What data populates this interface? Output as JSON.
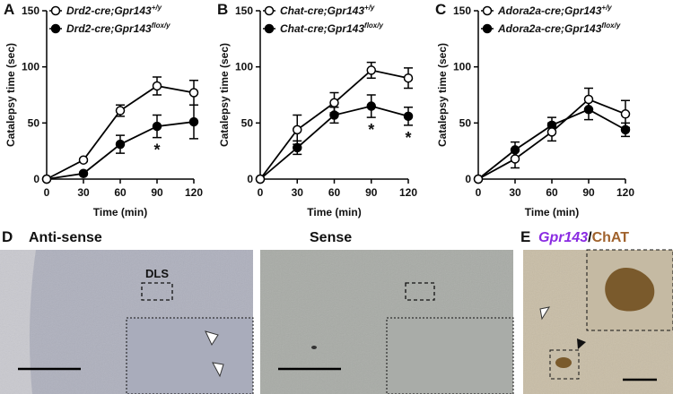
{
  "chart_data": [
    {
      "type": "line",
      "panel_label": "A",
      "ylabel": "Catalepsy time (sec)",
      "xlabel": "Time (min)",
      "x": [
        0,
        30,
        60,
        90,
        120
      ],
      "xlim": [
        0,
        120
      ],
      "xticks": [
        0,
        30,
        60,
        90,
        120
      ],
      "ylim": [
        0,
        150
      ],
      "yticks": [
        0,
        50,
        100,
        150
      ],
      "series": [
        {
          "name": "Drd2-cre;Gpr143",
          "superscript": "+/y",
          "marker": "open",
          "color": "#000000",
          "values": [
            0,
            17,
            61,
            83,
            77
          ],
          "errors": [
            0,
            1,
            5,
            8,
            11
          ]
        },
        {
          "name": "Drd2-cre;Gpr143",
          "superscript": "flox/y",
          "marker": "filled",
          "color": "#000000",
          "values": [
            0,
            5,
            31,
            47,
            51
          ],
          "errors": [
            0,
            1,
            8,
            10,
            15
          ]
        }
      ],
      "annotations": [
        {
          "x": 90,
          "text": "*"
        }
      ]
    },
    {
      "type": "line",
      "panel_label": "B",
      "ylabel": "Catalepsy time (sec)",
      "xlabel": "Time (min)",
      "x": [
        0,
        30,
        60,
        90,
        120
      ],
      "xlim": [
        0,
        120
      ],
      "xticks": [
        0,
        30,
        60,
        90,
        120
      ],
      "ylim": [
        0,
        150
      ],
      "yticks": [
        0,
        50,
        100,
        150
      ],
      "series": [
        {
          "name": "Chat-cre;Gpr143",
          "superscript": "+/y",
          "marker": "open",
          "color": "#000000",
          "values": [
            0,
            44,
            68,
            97,
            90
          ],
          "errors": [
            0,
            13,
            9,
            7,
            9
          ]
        },
        {
          "name": "Chat-cre;Gpr143",
          "superscript": "flox/y",
          "marker": "filled",
          "color": "#000000",
          "values": [
            0,
            28,
            57,
            65,
            56
          ],
          "errors": [
            0,
            6,
            7,
            10,
            8
          ]
        }
      ],
      "annotations": [
        {
          "x": 90,
          "text": "*"
        },
        {
          "x": 120,
          "text": "*"
        }
      ]
    },
    {
      "type": "line",
      "panel_label": "C",
      "ylabel": "Catalepsy time (sec)",
      "xlabel": "Time (min)",
      "x": [
        0,
        30,
        60,
        90,
        120
      ],
      "xlim": [
        0,
        120
      ],
      "xticks": [
        0,
        30,
        60,
        90,
        120
      ],
      "ylim": [
        0,
        150
      ],
      "yticks": [
        0,
        50,
        100,
        150
      ],
      "series": [
        {
          "name": "Adora2a-cre;Gpr143",
          "superscript": "+/y",
          "marker": "open",
          "color": "#000000",
          "values": [
            0,
            18,
            42,
            71,
            58
          ],
          "errors": [
            0,
            8,
            8,
            10,
            12
          ]
        },
        {
          "name": "Adora2a-cre;Gpr143",
          "superscript": "flox/y",
          "marker": "filled",
          "color": "#000000",
          "values": [
            0,
            26,
            48,
            62,
            44
          ],
          "errors": [
            0,
            7,
            7,
            9,
            6
          ]
        }
      ],
      "annotations": []
    }
  ],
  "images": {
    "d_label": "D",
    "d_antisense": "Anti-sense",
    "d_sense": "Sense",
    "dls": "DLS",
    "e_label": "E",
    "e_gene": "Gpr143",
    "e_slash": "/",
    "e_protein": "ChAT"
  }
}
